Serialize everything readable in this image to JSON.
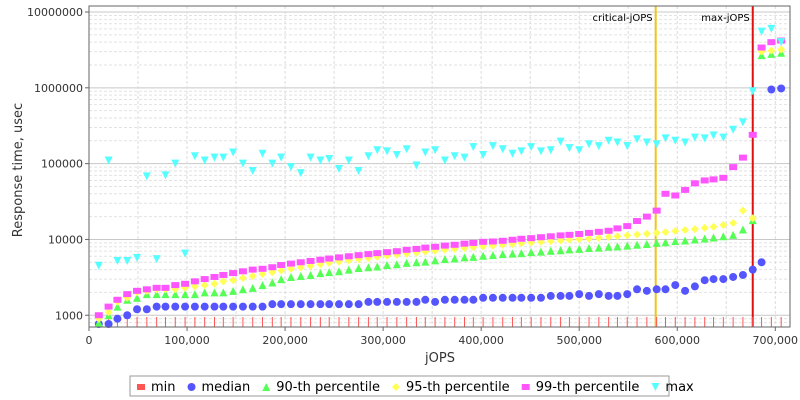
{
  "chart_data": {
    "type": "scatter",
    "title": "",
    "xlabel": "jOPS",
    "ylabel": "Response time, usec",
    "xlim": [
      0,
      715000
    ],
    "ylim": [
      700,
      12000000
    ],
    "yscale": "log",
    "grid": true,
    "legend_position": "bottom",
    "x_ticks": [
      0,
      100000,
      200000,
      300000,
      400000,
      500000,
      600000,
      700000
    ],
    "x_tick_labels": [
      "0",
      "100,000",
      "200,000",
      "300,000",
      "400,000",
      "500,000",
      "600,000",
      "700,000"
    ],
    "y_ticks": [
      1000,
      10000,
      100000,
      1000000,
      10000000
    ],
    "y_tick_labels": [
      "1000",
      "10000",
      "100000",
      "1000000",
      "10000000"
    ],
    "vertical_markers": [
      {
        "label": "critical-jOPS",
        "x": 578000,
        "color": "#f2c31a"
      },
      {
        "label": "max-jOPS",
        "x": 677000,
        "color": "#e01010"
      }
    ],
    "x": [
      10000,
      20000,
      29000,
      39000,
      49000,
      59000,
      69000,
      78000,
      88000,
      98000,
      108000,
      118000,
      128000,
      137000,
      147000,
      157000,
      167000,
      177000,
      187000,
      196000,
      206000,
      216000,
      226000,
      236000,
      245000,
      255000,
      265000,
      275000,
      285000,
      294000,
      304000,
      314000,
      324000,
      334000,
      343000,
      353000,
      363000,
      373000,
      383000,
      392000,
      402000,
      412000,
      422000,
      432000,
      441000,
      451000,
      461000,
      471000,
      481000,
      490000,
      500000,
      510000,
      520000,
      530000,
      539000,
      549000,
      559000,
      569000,
      579000,
      588000,
      598000,
      608000,
      618000,
      628000,
      637000,
      647000,
      657000,
      667000,
      677000,
      686000,
      696000,
      706000,
      716000
    ],
    "series": [
      {
        "name": "min",
        "color": "#ff5555",
        "marker": "square",
        "values": [
          700,
          700,
          700,
          700,
          700,
          700,
          700,
          700,
          700,
          700,
          700,
          700,
          700,
          700,
          700,
          700,
          700,
          700,
          700,
          700,
          700,
          700,
          700,
          700,
          700,
          700,
          700,
          700,
          700,
          700,
          700,
          700,
          700,
          700,
          700,
          700,
          700,
          700,
          700,
          700,
          700,
          700,
          700,
          700,
          700,
          700,
          700,
          700,
          700,
          700,
          700,
          700,
          700,
          700,
          700,
          700,
          700,
          700,
          700,
          700,
          700,
          700,
          700,
          700,
          700,
          700,
          700,
          700,
          700,
          700,
          700,
          700,
          700
        ]
      },
      {
        "name": "median",
        "color": "#5555ff",
        "marker": "circle",
        "values": [
          700,
          700,
          900,
          1000,
          1200,
          1200,
          1300,
          1300,
          1300,
          1300,
          1300,
          1300,
          1300,
          1300,
          1300,
          1300,
          1300,
          1300,
          1400,
          1400,
          1400,
          1400,
          1400,
          1400,
          1400,
          1400,
          1400,
          1400,
          1500,
          1500,
          1500,
          1500,
          1500,
          1500,
          1600,
          1500,
          1600,
          1600,
          1600,
          1600,
          1700,
          1700,
          1700,
          1700,
          1700,
          1700,
          1700,
          1800,
          1800,
          1800,
          1900,
          1800,
          1900,
          1800,
          1800,
          1900,
          2200,
          2100,
          2200,
          2200,
          2500,
          2100,
          2400,
          2900,
          3000,
          3000,
          3200,
          3400,
          4000,
          5000,
          950000,
          980000,
          1300000
        ]
      },
      {
        "name": "90-th percentile",
        "color": "#55ff55",
        "marker": "triangle-up",
        "values": [
          800,
          1000,
          1300,
          1600,
          1700,
          1900,
          1900,
          1900,
          1900,
          1900,
          1900,
          2000,
          2000,
          2000,
          2100,
          2200,
          2300,
          2500,
          2700,
          3000,
          3200,
          3300,
          3400,
          3600,
          3700,
          3800,
          4000,
          4200,
          4300,
          4400,
          4600,
          4700,
          4900,
          5000,
          5100,
          5300,
          5500,
          5600,
          5800,
          5900,
          6100,
          6200,
          6400,
          6500,
          6600,
          6800,
          6900,
          7100,
          7200,
          7400,
          7500,
          7700,
          7800,
          8000,
          8100,
          8300,
          8500,
          8700,
          9000,
          9200,
          9500,
          9700,
          10000,
          10300,
          10600,
          11000,
          11500,
          13500,
          18000,
          2700000,
          2800000,
          2900000,
          3100000
        ]
      },
      {
        "name": "95-th percentile",
        "color": "#ffff55",
        "marker": "diamond",
        "values": [
          900,
          1100,
          1500,
          1700,
          2000,
          2100,
          2200,
          2200,
          2200,
          2300,
          2400,
          2500,
          2600,
          2800,
          2900,
          3100,
          3300,
          3500,
          3700,
          3900,
          4100,
          4300,
          4500,
          4700,
          4900,
          5100,
          5300,
          5500,
          5700,
          5900,
          6100,
          6300,
          6500,
          6700,
          6900,
          7100,
          7300,
          7500,
          7700,
          7900,
          8100,
          8300,
          8500,
          8700,
          8900,
          9100,
          9300,
          9500,
          9700,
          9900,
          10100,
          10300,
          10500,
          10800,
          11000,
          11300,
          11600,
          11900,
          12200,
          12500,
          12900,
          13300,
          13700,
          14200,
          14700,
          15500,
          16500,
          24000,
          19000,
          3000000,
          3100000,
          3200000,
          3400000
        ]
      },
      {
        "name": "99-th percentile",
        "color": "#ff55ff",
        "marker": "square",
        "values": [
          1000,
          1300,
          1600,
          1900,
          2100,
          2200,
          2300,
          2300,
          2500,
          2600,
          2800,
          3000,
          3200,
          3400,
          3600,
          3800,
          4000,
          4100,
          4300,
          4600,
          4800,
          5000,
          5200,
          5400,
          5600,
          5800,
          6000,
          6200,
          6400,
          6600,
          6800,
          7000,
          7300,
          7500,
          7800,
          8000,
          8300,
          8500,
          8800,
          9000,
          9300,
          9400,
          9600,
          9900,
          10200,
          10400,
          10700,
          11000,
          11300,
          11500,
          11800,
          12200,
          12600,
          13000,
          14000,
          15000,
          17500,
          20000,
          24000,
          40000,
          38000,
          45000,
          55000,
          60000,
          62000,
          65000,
          90000,
          120000,
          240000,
          3400000,
          4000000,
          4200000,
          3300000
        ]
      },
      {
        "name": "max",
        "color": "#55ffff",
        "marker": "triangle-down",
        "values": [
          4500,
          110000,
          5200,
          5200,
          5700,
          68000,
          5500,
          70000,
          100000,
          6500,
          125000,
          110000,
          120000,
          120000,
          140000,
          100000,
          80000,
          135000,
          100000,
          120000,
          90000,
          75000,
          120000,
          110000,
          115000,
          85000,
          110000,
          80000,
          125000,
          150000,
          145000,
          130000,
          155000,
          95000,
          140000,
          150000,
          110000,
          125000,
          120000,
          165000,
          130000,
          170000,
          155000,
          135000,
          145000,
          165000,
          145000,
          150000,
          195000,
          160000,
          150000,
          180000,
          170000,
          200000,
          190000,
          170000,
          210000,
          190000,
          180000,
          215000,
          200000,
          190000,
          220000,
          215000,
          235000,
          220000,
          280000,
          350000,
          900000,
          5500000,
          6000000,
          4000000,
          3800000
        ]
      }
    ]
  }
}
